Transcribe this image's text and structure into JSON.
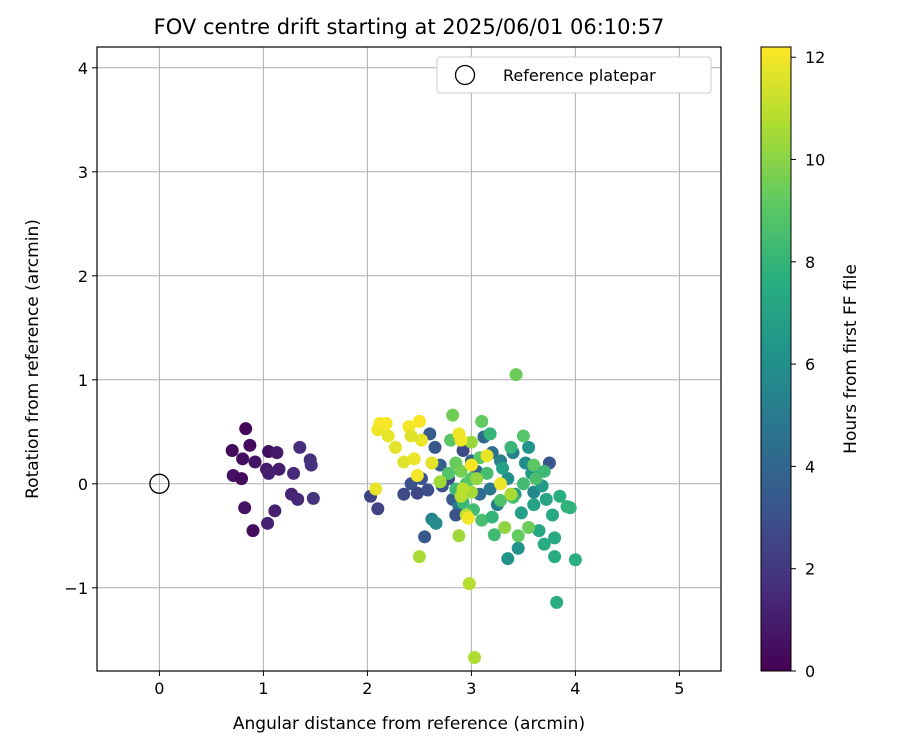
{
  "chart_data": {
    "type": "scatter",
    "title": "FOV centre drift starting at 2025/06/01 06:10:57",
    "xlabel": "Angular distance from reference (arcmin)",
    "ylabel": "Rotation from reference (arcmin)",
    "xlim": [
      -0.6,
      5.4
    ],
    "ylim": [
      -1.8,
      4.2
    ],
    "xticks": [
      0,
      1,
      2,
      3,
      4,
      5
    ],
    "yticks": [
      -1,
      0,
      1,
      2,
      3,
      4
    ],
    "grid": true,
    "legend": {
      "position": "top-right",
      "entries": [
        "Reference platepar"
      ]
    },
    "reference_point": {
      "x": 0,
      "y": 0,
      "label": "Reference platepar",
      "marker": "open-circle"
    },
    "colorbar": {
      "label": "Hours from first FF file",
      "colormap": "viridis",
      "range": [
        0,
        12.2
      ],
      "ticks": [
        0,
        2,
        4,
        6,
        8,
        10,
        12
      ]
    },
    "series": [
      {
        "points": [
          {
            "x": 0.7,
            "y": 0.32,
            "c": 0.3
          },
          {
            "x": 0.83,
            "y": 0.53,
            "c": 0.2
          },
          {
            "x": 0.87,
            "y": 0.37,
            "c": 0.4
          },
          {
            "x": 0.8,
            "y": 0.24,
            "c": 0.5
          },
          {
            "x": 0.71,
            "y": 0.08,
            "c": 0.6
          },
          {
            "x": 0.79,
            "y": 0.05,
            "c": 0.3
          },
          {
            "x": 0.92,
            "y": 0.21,
            "c": 0.7
          },
          {
            "x": 1.03,
            "y": 0.14,
            "c": 0.8
          },
          {
            "x": 1.05,
            "y": 0.31,
            "c": 0.5
          },
          {
            "x": 1.13,
            "y": 0.3,
            "c": 0.9
          },
          {
            "x": 1.15,
            "y": 0.14,
            "c": 1.0
          },
          {
            "x": 1.05,
            "y": 0.1,
            "c": 1.1
          },
          {
            "x": 0.82,
            "y": -0.23,
            "c": 0.6
          },
          {
            "x": 0.9,
            "y": -0.45,
            "c": 0.4
          },
          {
            "x": 1.04,
            "y": -0.38,
            "c": 1.2
          },
          {
            "x": 1.11,
            "y": -0.26,
            "c": 1.1
          },
          {
            "x": 1.27,
            "y": -0.1,
            "c": 1.3
          },
          {
            "x": 1.33,
            "y": -0.15,
            "c": 1.4
          },
          {
            "x": 1.29,
            "y": 0.1,
            "c": 1.5
          },
          {
            "x": 1.35,
            "y": 0.35,
            "c": 1.6
          },
          {
            "x": 1.45,
            "y": 0.23,
            "c": 1.7
          },
          {
            "x": 1.46,
            "y": 0.18,
            "c": 1.8
          },
          {
            "x": 1.48,
            "y": -0.14,
            "c": 1.9
          },
          {
            "x": 2.03,
            "y": -0.12,
            "c": 2.5
          },
          {
            "x": 2.1,
            "y": -0.24,
            "c": 2.4
          },
          {
            "x": 2.35,
            "y": -0.1,
            "c": 2.8
          },
          {
            "x": 2.42,
            "y": 0.0,
            "c": 3.0
          },
          {
            "x": 2.48,
            "y": -0.09,
            "c": 2.6
          },
          {
            "x": 2.52,
            "y": 0.05,
            "c": 3.2
          },
          {
            "x": 2.58,
            "y": -0.06,
            "c": 2.9
          },
          {
            "x": 2.55,
            "y": -0.51,
            "c": 3.4
          },
          {
            "x": 2.62,
            "y": -0.34,
            "c": 5.5
          },
          {
            "x": 2.66,
            "y": -0.38,
            "c": 5.8
          },
          {
            "x": 2.6,
            "y": 0.48,
            "c": 3.5
          },
          {
            "x": 2.65,
            "y": 0.35,
            "c": 3.3
          },
          {
            "x": 2.7,
            "y": 0.18,
            "c": 3.7
          },
          {
            "x": 2.72,
            "y": -0.02,
            "c": 3.1
          },
          {
            "x": 2.78,
            "y": 0.05,
            "c": 2.7
          },
          {
            "x": 2.82,
            "y": -0.15,
            "c": 3.6
          },
          {
            "x": 2.88,
            "y": -0.22,
            "c": 5.0
          },
          {
            "x": 2.85,
            "y": -0.3,
            "c": 3.0
          },
          {
            "x": 2.92,
            "y": 0.32,
            "c": 2.8
          },
          {
            "x": 3.05,
            "y": 0.12,
            "c": 3.9
          },
          {
            "x": 3.12,
            "y": 0.45,
            "c": 4.2
          },
          {
            "x": 3.2,
            "y": 0.3,
            "c": 4.5
          },
          {
            "x": 3.28,
            "y": 0.22,
            "c": 5.2
          },
          {
            "x": 3.35,
            "y": 0.05,
            "c": 6.0
          },
          {
            "x": 3.42,
            "y": -0.1,
            "c": 6.5
          },
          {
            "x": 3.48,
            "y": -0.28,
            "c": 6.8
          },
          {
            "x": 3.55,
            "y": 0.35,
            "c": 6.2
          },
          {
            "x": 3.6,
            "y": -0.2,
            "c": 7.0
          },
          {
            "x": 3.65,
            "y": -0.45,
            "c": 7.2
          },
          {
            "x": 3.7,
            "y": -0.58,
            "c": 7.5
          },
          {
            "x": 3.75,
            "y": 0.2,
            "c": 3.2
          },
          {
            "x": 3.8,
            "y": -0.52,
            "c": 7.4
          },
          {
            "x": 3.35,
            "y": -0.72,
            "c": 6.3
          },
          {
            "x": 3.45,
            "y": -0.62,
            "c": 6.1
          },
          {
            "x": 3.6,
            "y": -0.08,
            "c": 5.6
          },
          {
            "x": 3.68,
            "y": -0.02,
            "c": 6.6
          },
          {
            "x": 3.72,
            "y": -0.15,
            "c": 7.1
          },
          {
            "x": 3.78,
            "y": -0.3,
            "c": 7.3
          },
          {
            "x": 3.85,
            "y": -0.12,
            "c": 7.6
          },
          {
            "x": 3.92,
            "y": -0.22,
            "c": 7.8
          },
          {
            "x": 3.95,
            "y": -0.23,
            "c": 7.9
          },
          {
            "x": 4.0,
            "y": -0.73,
            "c": 7.7
          },
          {
            "x": 3.8,
            "y": -0.7,
            "c": 7.5
          },
          {
            "x": 3.82,
            "y": -1.14,
            "c": 7.6
          },
          {
            "x": 3.52,
            "y": 0.2,
            "c": 5.9
          },
          {
            "x": 3.58,
            "y": 0.1,
            "c": 6.4
          },
          {
            "x": 3.25,
            "y": -0.2,
            "c": 5.1
          },
          {
            "x": 3.18,
            "y": -0.05,
            "c": 4.8
          },
          {
            "x": 3.08,
            "y": -0.1,
            "c": 4.3
          },
          {
            "x": 3.0,
            "y": 0.22,
            "c": 4.0
          },
          {
            "x": 3.4,
            "y": 0.3,
            "c": 5.4
          },
          {
            "x": 3.3,
            "y": 0.15,
            "c": 7.0
          },
          {
            "x": 2.8,
            "y": 0.42,
            "c": 9.0
          },
          {
            "x": 2.85,
            "y": 0.2,
            "c": 9.3
          },
          {
            "x": 2.9,
            "y": 0.12,
            "c": 9.6
          },
          {
            "x": 2.95,
            "y": 0.0,
            "c": 8.8
          },
          {
            "x": 2.92,
            "y": -0.18,
            "c": 8.2
          },
          {
            "x": 3.02,
            "y": -0.25,
            "c": 8.4
          },
          {
            "x": 3.1,
            "y": -0.35,
            "c": 8.6
          },
          {
            "x": 3.2,
            "y": -0.32,
            "c": 8.0
          },
          {
            "x": 3.22,
            "y": -0.49,
            "c": 8.3
          },
          {
            "x": 3.28,
            "y": -0.16,
            "c": 8.7
          },
          {
            "x": 3.4,
            "y": -0.13,
            "c": 8.5
          },
          {
            "x": 3.45,
            "y": -0.5,
            "c": 9.2
          },
          {
            "x": 3.55,
            "y": -0.42,
            "c": 9.4
          },
          {
            "x": 3.38,
            "y": 0.35,
            "c": 8.1
          },
          {
            "x": 3.5,
            "y": 0.46,
            "c": 8.9
          },
          {
            "x": 3.6,
            "y": 0.18,
            "c": 9.1
          },
          {
            "x": 3.62,
            "y": 0.05,
            "c": 8.6
          },
          {
            "x": 3.7,
            "y": 0.12,
            "c": 8.2
          },
          {
            "x": 3.5,
            "y": 0.0,
            "c": 8.4
          },
          {
            "x": 3.18,
            "y": 0.48,
            "c": 8.0
          },
          {
            "x": 2.82,
            "y": 0.66,
            "c": 9.5
          },
          {
            "x": 3.1,
            "y": 0.6,
            "c": 9.2
          },
          {
            "x": 3.43,
            "y": 1.05,
            "c": 9.4
          },
          {
            "x": 2.78,
            "y": 0.1,
            "c": 8.8
          },
          {
            "x": 2.85,
            "y": -0.05,
            "c": 8.3
          },
          {
            "x": 3.0,
            "y": 0.05,
            "c": 8.9
          },
          {
            "x": 3.08,
            "y": 0.25,
            "c": 9.0
          },
          {
            "x": 3.15,
            "y": 0.1,
            "c": 8.5
          },
          {
            "x": 2.5,
            "y": -0.7,
            "c": 10.6
          },
          {
            "x": 2.88,
            "y": -0.5,
            "c": 10.4
          },
          {
            "x": 2.98,
            "y": -0.96,
            "c": 10.8
          },
          {
            "x": 3.03,
            "y": -1.67,
            "c": 10.7
          },
          {
            "x": 2.95,
            "y": -0.3,
            "c": 11.0
          },
          {
            "x": 2.9,
            "y": -0.12,
            "c": 10.9
          },
          {
            "x": 3.0,
            "y": -0.08,
            "c": 10.5
          },
          {
            "x": 3.05,
            "y": 0.05,
            "c": 10.2
          },
          {
            "x": 3.0,
            "y": 0.4,
            "c": 10.3
          },
          {
            "x": 3.32,
            "y": -0.42,
            "c": 10.1
          },
          {
            "x": 3.38,
            "y": -0.1,
            "c": 10.6
          },
          {
            "x": 2.7,
            "y": 0.02,
            "c": 10.4
          },
          {
            "x": 2.92,
            "y": -0.05,
            "c": 10.9
          },
          {
            "x": 2.08,
            "y": -0.05,
            "c": 11.8
          },
          {
            "x": 2.1,
            "y": 0.52,
            "c": 11.9
          },
          {
            "x": 2.12,
            "y": 0.58,
            "c": 12.0
          },
          {
            "x": 2.18,
            "y": 0.58,
            "c": 12.1
          },
          {
            "x": 2.2,
            "y": 0.46,
            "c": 11.8
          },
          {
            "x": 2.27,
            "y": 0.35,
            "c": 11.7
          },
          {
            "x": 2.35,
            "y": 0.21,
            "c": 11.6
          },
          {
            "x": 2.4,
            "y": 0.55,
            "c": 12.0
          },
          {
            "x": 2.45,
            "y": 0.24,
            "c": 11.9
          },
          {
            "x": 2.5,
            "y": 0.6,
            "c": 12.1
          },
          {
            "x": 2.52,
            "y": 0.42,
            "c": 11.8
          },
          {
            "x": 2.62,
            "y": 0.2,
            "c": 11.7
          },
          {
            "x": 2.48,
            "y": 0.08,
            "c": 12.0
          },
          {
            "x": 2.88,
            "y": 0.48,
            "c": 11.9
          },
          {
            "x": 2.9,
            "y": 0.42,
            "c": 12.0
          },
          {
            "x": 3.0,
            "y": 0.18,
            "c": 12.1
          },
          {
            "x": 3.15,
            "y": 0.27,
            "c": 11.8
          },
          {
            "x": 3.28,
            "y": 0.0,
            "c": 11.9
          },
          {
            "x": 2.97,
            "y": -0.33,
            "c": 12.0
          },
          {
            "x": 2.42,
            "y": 0.46,
            "c": 11.6
          }
        ]
      }
    ]
  }
}
